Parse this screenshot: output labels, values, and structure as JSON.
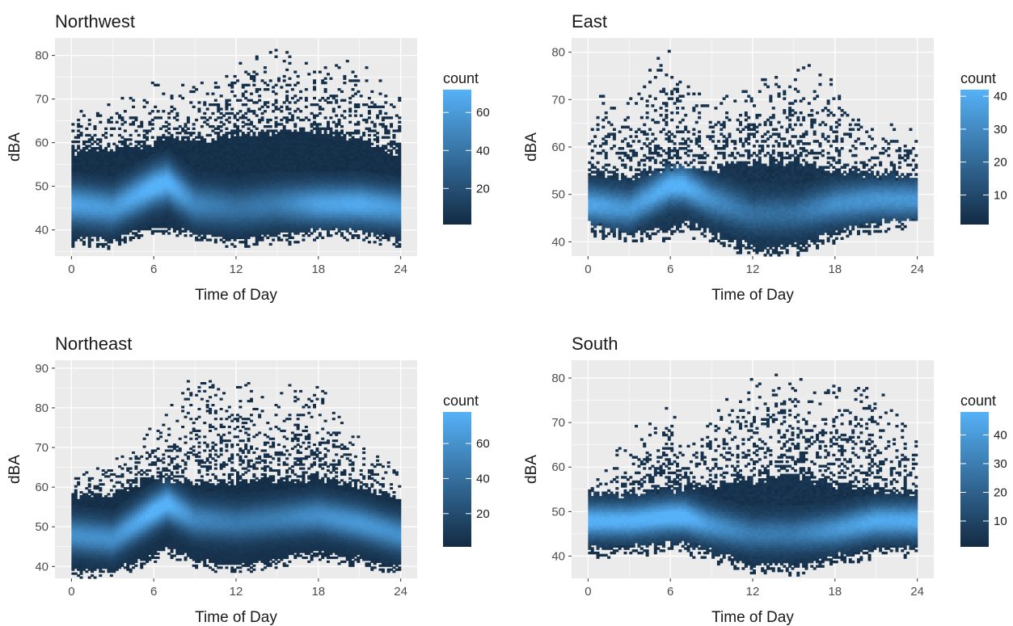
{
  "colors": {
    "panel_bg": "#ebebeb",
    "grid": "#ffffff",
    "low": "#132b43",
    "high": "#56b1f7",
    "tick": "#333333"
  },
  "chart_data": [
    {
      "type": "heatmap",
      "title": "Northwest",
      "xlabel": "Time of Day",
      "ylabel": "dBA",
      "xlim": [
        -1.2,
        25.2
      ],
      "ylim": [
        34,
        84
      ],
      "x_ticks": [
        0,
        6,
        12,
        18,
        24
      ],
      "y_ticks": [
        40,
        50,
        60,
        70,
        80
      ],
      "grid": true,
      "legend": {
        "title": "count",
        "ticks": [
          20,
          40,
          60
        ],
        "range": [
          1,
          72
        ],
        "placement": "right"
      },
      "density": {
        "x": [
          0,
          3,
          6,
          7,
          9,
          12,
          15,
          18,
          21,
          24
        ],
        "center_dBA": [
          46,
          45,
          50,
          51,
          46,
          45,
          46,
          46,
          46,
          45
        ],
        "core_halfwidth": [
          3,
          3,
          3,
          3,
          3,
          3,
          3,
          3,
          3,
          3
        ],
        "band_top": [
          58,
          58,
          60,
          62,
          60,
          62,
          62,
          63,
          61,
          57
        ],
        "band_bottom": [
          38,
          38,
          41,
          41,
          39,
          38,
          39,
          40,
          40,
          38
        ],
        "outlier_max": [
          68,
          70,
          74,
          73,
          75,
          79,
          82,
          79,
          79,
          70
        ],
        "peak_count": [
          60,
          55,
          72,
          72,
          45,
          35,
          40,
          60,
          65,
          55
        ]
      }
    },
    {
      "type": "heatmap",
      "title": "East",
      "xlabel": "Time of Day",
      "ylabel": "dBA",
      "xlim": [
        -1.2,
        25.2
      ],
      "ylim": [
        37,
        83
      ],
      "x_ticks": [
        0,
        6,
        12,
        18,
        24
      ],
      "y_ticks": [
        40,
        50,
        60,
        70,
        80
      ],
      "grid": true,
      "legend": {
        "title": "count",
        "ticks": [
          10,
          20,
          30,
          40
        ],
        "range": [
          1,
          42
        ],
        "placement": "right"
      },
      "density": {
        "x": [
          0,
          3,
          6,
          7,
          9,
          12,
          15,
          18,
          21,
          24
        ],
        "center_dBA": [
          48,
          47,
          52,
          52,
          49,
          46,
          46,
          48,
          49,
          49
        ],
        "core_halfwidth": [
          2.5,
          2.5,
          2.5,
          2.5,
          2.5,
          2.5,
          2.5,
          2.5,
          2.5,
          2.5
        ],
        "band_top": [
          55,
          53,
          56,
          56,
          55,
          57,
          57,
          55,
          54,
          54
        ],
        "band_bottom": [
          44,
          42,
          43,
          44,
          42,
          39,
          39,
          42,
          44,
          45
        ],
        "outlier_max": [
          70,
          73,
          82,
          75,
          72,
          75,
          79,
          75,
          64,
          67
        ],
        "peak_count": [
          35,
          30,
          40,
          40,
          28,
          18,
          18,
          28,
          30,
          30
        ]
      }
    },
    {
      "type": "heatmap",
      "title": "Northeast",
      "xlabel": "Time of Day",
      "ylabel": "dBA",
      "xlim": [
        -1.2,
        25.2
      ],
      "ylim": [
        37,
        92
      ],
      "x_ticks": [
        0,
        6,
        12,
        18,
        24
      ],
      "y_ticks": [
        40,
        50,
        60,
        70,
        80,
        90
      ],
      "grid": true,
      "legend": {
        "title": "count",
        "ticks": [
          20,
          40,
          60
        ],
        "range": [
          1,
          78
        ],
        "placement": "right"
      },
      "density": {
        "x": [
          0,
          3,
          6,
          7,
          9,
          12,
          15,
          18,
          21,
          24
        ],
        "center_dBA": [
          48,
          47,
          54,
          56,
          52,
          51,
          52,
          53,
          51,
          48
        ],
        "core_halfwidth": [
          3,
          3,
          3,
          3,
          3,
          3,
          3,
          3,
          3,
          3
        ],
        "band_top": [
          58,
          58,
          62,
          62,
          61,
          61,
          62,
          62,
          60,
          57
        ],
        "band_bottom": [
          39,
          39,
          43,
          45,
          42,
          40,
          42,
          44,
          42,
          40
        ],
        "outlier_max": [
          63,
          67,
          76,
          80,
          89,
          88,
          86,
          87,
          73,
          65
        ],
        "peak_count": [
          55,
          55,
          78,
          78,
          50,
          42,
          45,
          55,
          60,
          55
        ]
      }
    },
    {
      "type": "heatmap",
      "title": "South",
      "xlabel": "Time of Day",
      "ylabel": "dBA",
      "xlim": [
        -1.2,
        25.2
      ],
      "ylim": [
        35,
        84
      ],
      "x_ticks": [
        0,
        6,
        12,
        18,
        24
      ],
      "y_ticks": [
        40,
        50,
        60,
        70,
        80
      ],
      "grid": true,
      "legend": {
        "title": "count",
        "ticks": [
          10,
          20,
          30,
          40
        ],
        "range": [
          1,
          48
        ],
        "placement": "right"
      },
      "density": {
        "x": [
          0,
          3,
          6,
          7,
          9,
          12,
          15,
          18,
          21,
          24
        ],
        "center_dBA": [
          48,
          48,
          49,
          49,
          47,
          45,
          45,
          46,
          48,
          48
        ],
        "core_halfwidth": [
          2.5,
          2.5,
          2.5,
          2.5,
          2.5,
          2.5,
          2.5,
          2.5,
          2.5,
          2.5
        ],
        "band_top": [
          54,
          54,
          55,
          55,
          56,
          57,
          58,
          56,
          55,
          54
        ],
        "band_bottom": [
          42,
          42,
          43,
          43,
          41,
          38,
          38,
          40,
          42,
          42
        ],
        "outlier_max": [
          55,
          68,
          76,
          64,
          72,
          82,
          80,
          79,
          79,
          67
        ],
        "peak_count": [
          45,
          45,
          48,
          48,
          35,
          25,
          25,
          35,
          42,
          42
        ]
      }
    }
  ]
}
